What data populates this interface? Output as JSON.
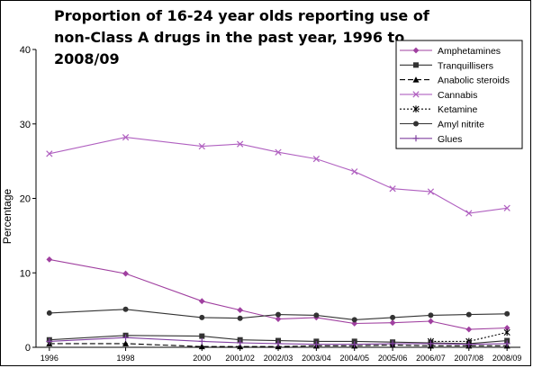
{
  "chart_data": {
    "type": "line",
    "title": "Proportion of 16-24 year olds reporting use of non-Class A drugs in the past year, 1996 to 2008/09",
    "ylabel": "Percentage",
    "xlabel": "",
    "ylim": [
      0,
      40
    ],
    "yticks": [
      "0",
      "10",
      "20",
      "30",
      "40"
    ],
    "categories": [
      "1996",
      "1998",
      "2000",
      "2001/02",
      "2002/03",
      "2003/04",
      "2004/05",
      "2005/06",
      "2006/07",
      "2007/08",
      "2008/09"
    ],
    "x_positions": [
      1996,
      1998,
      2000,
      2001,
      2002,
      2003,
      2004,
      2005,
      2006,
      2007,
      2008
    ],
    "legend_position": "top-right",
    "grid": false,
    "series": [
      {
        "name": "Amphetamines",
        "color": "#a040a0",
        "marker": "diamond",
        "dash": "solid",
        "x": [
          1996,
          1998,
          2000,
          2001,
          2002,
          2003,
          2004,
          2005,
          2006,
          2007,
          2008
        ],
        "values": [
          11.8,
          9.9,
          6.2,
          5.0,
          3.8,
          4.0,
          3.2,
          3.3,
          3.5,
          2.4,
          2.6
        ]
      },
      {
        "name": "Tranquillisers",
        "color": "#333333",
        "marker": "square",
        "dash": "solid",
        "x": [
          1996,
          1998,
          2000,
          2001,
          2002,
          2003,
          2004,
          2005,
          2006,
          2007,
          2008
        ],
        "values": [
          1.0,
          1.6,
          1.5,
          1.0,
          0.9,
          0.8,
          0.8,
          0.7,
          0.6,
          0.5,
          0.9
        ]
      },
      {
        "name": "Anabolic steroids",
        "color": "#000000",
        "marker": "triangle",
        "dash": "dashed",
        "x": [
          1996,
          1998,
          2000,
          2001,
          2002,
          2003,
          2004,
          2005,
          2006,
          2007,
          2008
        ],
        "values": [
          0.5,
          0.5,
          0.1,
          0.1,
          0.1,
          0.2,
          0.2,
          0.3,
          0.2,
          0.2,
          0.2
        ]
      },
      {
        "name": "Cannabis",
        "color": "#b060c0",
        "marker": "x",
        "dash": "solid",
        "x": [
          1996,
          1998,
          2000,
          2001,
          2002,
          2003,
          2004,
          2005,
          2006,
          2007,
          2008
        ],
        "values": [
          26.0,
          28.2,
          27.0,
          27.3,
          26.2,
          25.3,
          23.6,
          21.3,
          20.9,
          18.0,
          18.7
        ]
      },
      {
        "name": "Ketamine",
        "color": "#000000",
        "marker": "star",
        "dash": "dotted",
        "x": [
          2006,
          2007,
          2008
        ],
        "values": [
          0.8,
          0.8,
          2.0
        ]
      },
      {
        "name": "Amyl nitrite",
        "color": "#333333",
        "marker": "circle",
        "dash": "solid",
        "x": [
          1996,
          1998,
          2000,
          2001,
          2002,
          2003,
          2004,
          2005,
          2006,
          2007,
          2008
        ],
        "values": [
          4.6,
          5.1,
          4.0,
          3.9,
          4.4,
          4.3,
          3.7,
          4.0,
          4.3,
          4.4,
          4.5
        ]
      },
      {
        "name": "Glues",
        "color": "#8040a0",
        "marker": "plus",
        "dash": "solid",
        "x": [
          1996,
          1998,
          2000,
          2001,
          2002,
          2003,
          2004,
          2005,
          2006,
          2007,
          2008
        ],
        "values": [
          0.8,
          1.3,
          0.8,
          0.6,
          0.5,
          0.4,
          0.4,
          0.5,
          0.5,
          0.4,
          0.5
        ]
      }
    ]
  }
}
